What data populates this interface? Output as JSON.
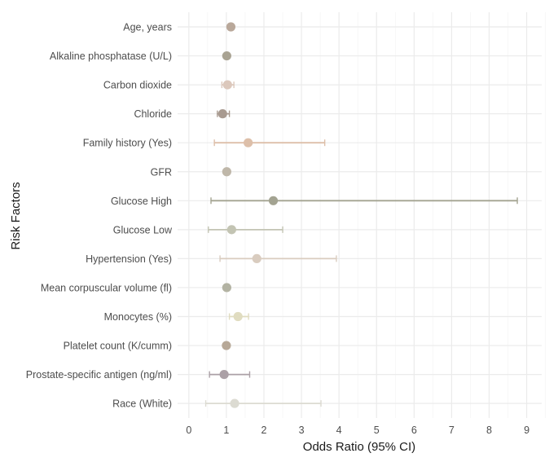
{
  "chart_data": {
    "type": "forest",
    "title": "",
    "xlabel": "Odds Ratio (95% CI)",
    "ylabel": "Risk Factors",
    "xlim": [
      -0.3,
      9.4
    ],
    "xticks": [
      0,
      1,
      2,
      3,
      4,
      5,
      6,
      7,
      8,
      9
    ],
    "grid": true,
    "legend": "none",
    "rows": [
      {
        "label": "Age, years",
        "or": 1.12,
        "low": 1.08,
        "high": 1.16,
        "color": "#b9a89a"
      },
      {
        "label": "Alkaline phosphatase (U/L)",
        "or": 1.01,
        "low": 1.0,
        "high": 1.02,
        "color": "#a9a393"
      },
      {
        "label": "Carbon dioxide",
        "or": 1.03,
        "low": 0.88,
        "high": 1.2,
        "color": "#dcc8bc"
      },
      {
        "label": "Chloride",
        "or": 0.9,
        "low": 0.76,
        "high": 1.08,
        "color": "#a89a90"
      },
      {
        "label": "Family history (Yes)",
        "or": 1.58,
        "low": 0.68,
        "high": 3.62,
        "color": "#ddbfa9"
      },
      {
        "label": "GFR",
        "or": 1.01,
        "low": 0.99,
        "high": 1.03,
        "color": "#bfb7a9"
      },
      {
        "label": "Glucose High",
        "or": 2.25,
        "low": 0.59,
        "high": 8.75,
        "color": "#a3a391"
      },
      {
        "label": "Glucose Low",
        "or": 1.14,
        "low": 0.52,
        "high": 2.5,
        "color": "#c3c4b3"
      },
      {
        "label": "Hypertension (Yes)",
        "or": 1.81,
        "low": 0.83,
        "high": 3.93,
        "color": "#d9ccbf"
      },
      {
        "label": "Mean corpuscular volume (fl)",
        "or": 1.01,
        "low": 0.98,
        "high": 1.04,
        "color": "#b3b3a3"
      },
      {
        "label": "Monocytes (%)",
        "or": 1.31,
        "low": 1.08,
        "high": 1.59,
        "color": "#e0dcc0"
      },
      {
        "label": "Platelet count (K/cumm)",
        "or": 1.0,
        "low": 0.99,
        "high": 1.01,
        "color": "#b7a897"
      },
      {
        "label": "Prostate-specific antigen (ng/ml)",
        "or": 0.94,
        "low": 0.55,
        "high": 1.62,
        "color": "#aba0a6"
      },
      {
        "label": "Race (White)",
        "or": 1.22,
        "low": 0.45,
        "high": 3.52,
        "color": "#dcdbd2"
      }
    ]
  }
}
